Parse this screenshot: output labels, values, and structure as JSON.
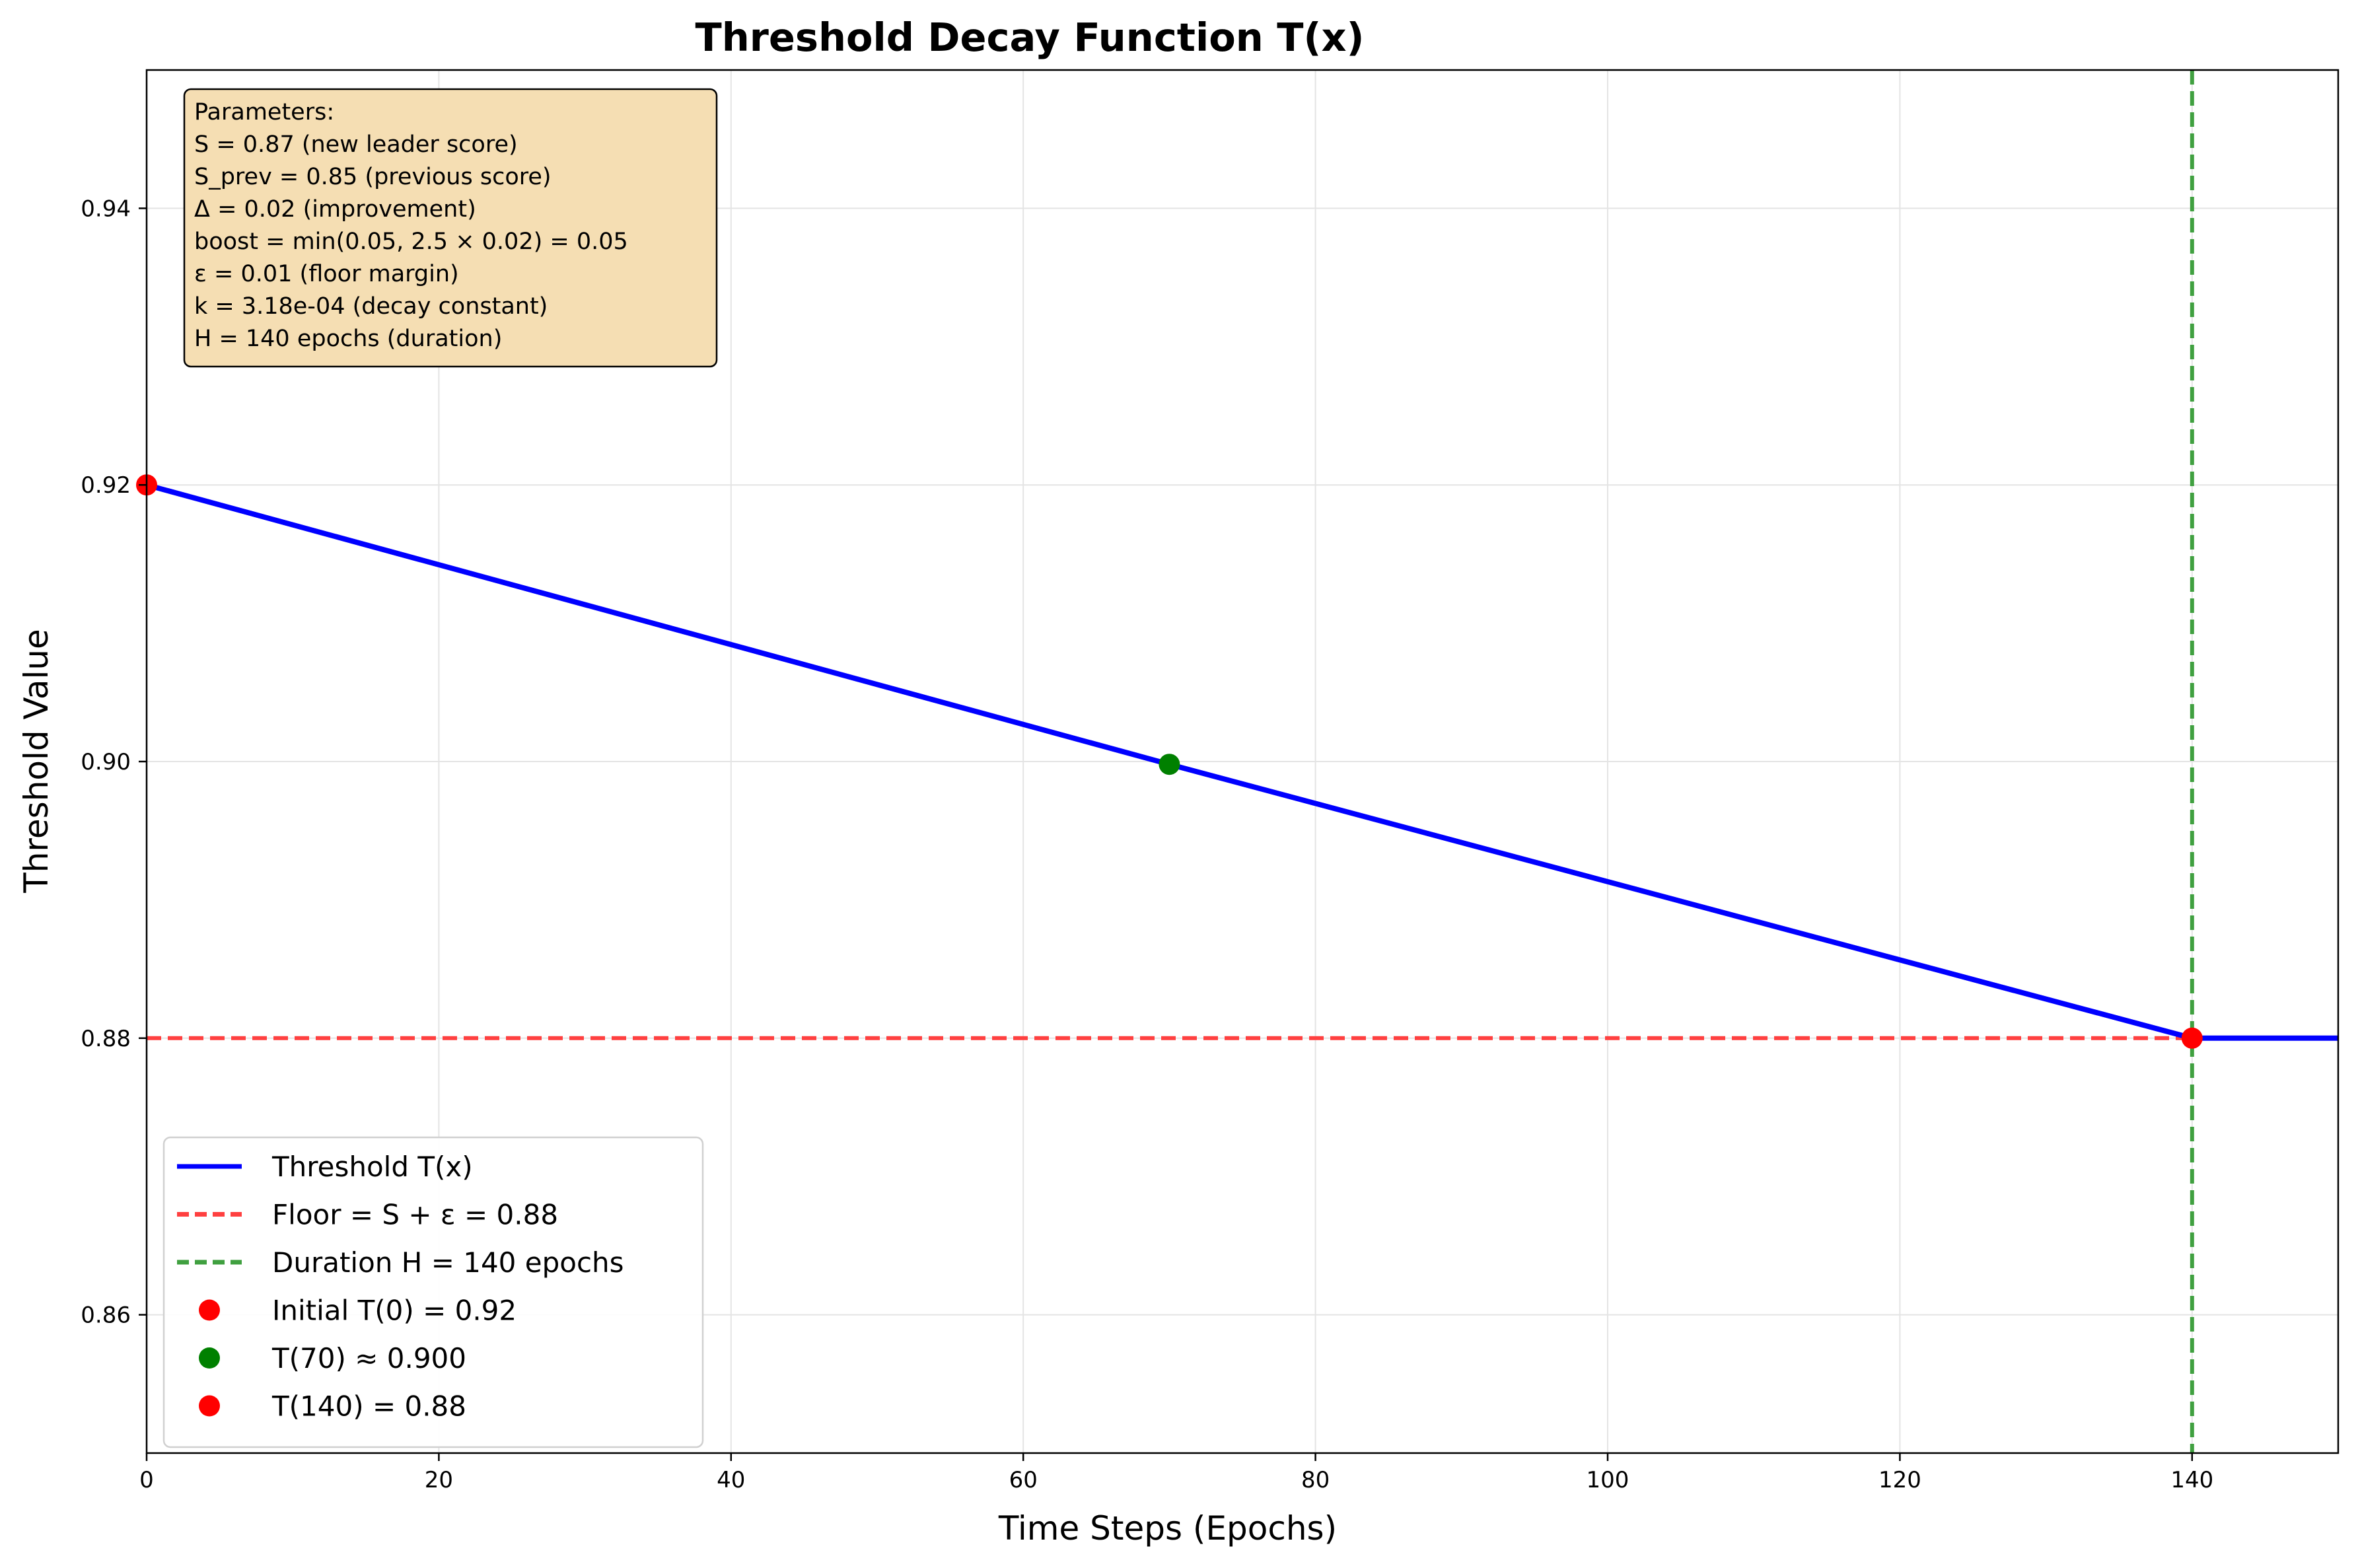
{
  "chart_data": {
    "type": "line",
    "title": "Threshold Decay Function T(x)",
    "xlabel": "Time Steps (Epochs)",
    "ylabel": "Threshold Value",
    "xlim": [
      0,
      150
    ],
    "ylim": [
      0.85,
      0.95
    ],
    "x_ticks": [
      0,
      20,
      40,
      60,
      80,
      100,
      120,
      140
    ],
    "x_tick_labels": [
      "0",
      "20",
      "40",
      "60",
      "80",
      "100",
      "120",
      "140"
    ],
    "y_ticks": [
      0.86,
      0.88,
      0.9,
      0.92,
      0.94
    ],
    "y_tick_labels": [
      "0.86",
      "0.88",
      "0.90",
      "0.92",
      "0.94"
    ],
    "grid": true,
    "legend_position": "lower-left",
    "series": [
      {
        "name": "Threshold T(x)",
        "kind": "line",
        "color": "#0000ff",
        "x": [
          0,
          70,
          140,
          150
        ],
        "y": [
          0.92,
          0.8998,
          0.88,
          0.88
        ]
      }
    ],
    "reference_lines": [
      {
        "name": "Floor = S + ε = 0.88",
        "orientation": "horizontal",
        "value": 0.88,
        "color": "#ff4040",
        "style": "dashed"
      },
      {
        "name": "Duration H = 140 epochs",
        "orientation": "vertical",
        "value": 140,
        "color": "#40a040",
        "style": "dashed"
      }
    ],
    "markers": [
      {
        "name": "Initial T(0) = 0.92",
        "x": 0,
        "y": 0.92,
        "color": "#ff0000"
      },
      {
        "name": "T(70) ≈ 0.900",
        "x": 70,
        "y": 0.8998,
        "color": "#008000"
      },
      {
        "name": "T(140) = 0.88",
        "x": 140,
        "y": 0.88,
        "color": "#ff0000"
      }
    ],
    "parameters_box": {
      "lines": [
        "Parameters:",
        "S = 0.87 (new leader score)",
        "S_prev = 0.85 (previous score)",
        "Δ = 0.02 (improvement)",
        "boost = min(0.05, 2.5 × 0.02) = 0.05",
        "ε = 0.01 (floor margin)",
        "k = 3.18e-04 (decay constant)",
        "H = 140 epochs (duration)"
      ],
      "background": "#f5deb3"
    }
  }
}
